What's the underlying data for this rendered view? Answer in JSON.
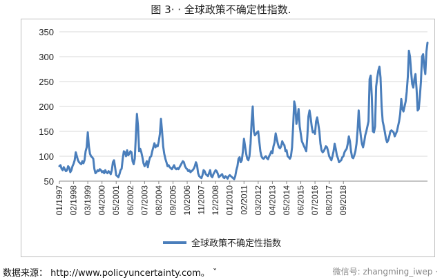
{
  "figure_title": "图 3· · 全球政策不确定性指数.",
  "source_text": "数据来源： http://www.policyuncertainty.com。 ˇ",
  "watermark_text": "微信号: zhangming_iwep ·",
  "colors": {
    "series": "#4a7ebb",
    "grid": "#d9d9d9",
    "axis": "#888888"
  },
  "chart_data": {
    "type": "line",
    "title": "全球政策不确定性指数",
    "xlabel": "",
    "ylabel": "",
    "ylim": [
      50,
      350
    ],
    "yticks": [
      50,
      100,
      150,
      200,
      250,
      300,
      350
    ],
    "grid": true,
    "legend_position": "bottom",
    "x_tick_labels": [
      "01/1997",
      "02/1998",
      "03/1999",
      "04/2000",
      "05/2001",
      "06/2002",
      "07/2003",
      "08/2004",
      "09/2005",
      "10/2006",
      "11/2007",
      "12/2008",
      "01/2010",
      "02/2011",
      "03/2012",
      "04/2013",
      "05/2014",
      "06/2015",
      "07/2016",
      "08/2017",
      "09/2018"
    ],
    "x_start": "01/1997",
    "x_end": "12/2019",
    "series": [
      {
        "name": "全球政策不确定性指数",
        "values": [
          80,
          82,
          75,
          72,
          78,
          74,
          70,
          72,
          80,
          77,
          68,
          72,
          80,
          85,
          92,
          108,
          100,
          92,
          88,
          86,
          84,
          90,
          86,
          92,
          110,
          118,
          148,
          120,
          105,
          100,
          98,
          95,
          75,
          66,
          68,
          72,
          70,
          74,
          72,
          68,
          70,
          66,
          72,
          68,
          66,
          70,
          68,
          64,
          72,
          88,
          92,
          78,
          62,
          60,
          58,
          64,
          72,
          75,
          95,
          110,
          108,
          100,
          112,
          102,
          105,
          110,
          108,
          90,
          84,
          95,
          140,
          185,
          160,
          110,
          115,
          108,
          98,
          86,
          80,
          84,
          90,
          78,
          90,
          98,
          100,
          110,
          118,
          126,
          118,
          122,
          120,
          130,
          145,
          175,
          150,
          120,
          105,
          95,
          88,
          80,
          82,
          78,
          76,
          74,
          78,
          82,
          76,
          74,
          76,
          74,
          78,
          82,
          86,
          90,
          88,
          80,
          76,
          74,
          70,
          72,
          68,
          70,
          72,
          75,
          80,
          88,
          82,
          66,
          60,
          58,
          56,
          62,
          72,
          70,
          64,
          62,
          60,
          66,
          72,
          60,
          58,
          64,
          68,
          72,
          70,
          65,
          58,
          60,
          62,
          64,
          58,
          56,
          60,
          58,
          55,
          60,
          62,
          60,
          58,
          56,
          54,
          60,
          72,
          80,
          95,
          98,
          88,
          92,
          110,
          135,
          120,
          105,
          95,
          92,
          100,
          125,
          170,
          200,
          150,
          142,
          145,
          148,
          150,
          130,
          110,
          100,
          96,
          95,
          98,
          100,
          96,
          94,
          100,
          104,
          110,
          106,
          120,
          128,
          146,
          135,
          125,
          118,
          116,
          120,
          130,
          125,
          122,
          110,
          112,
          100,
          98,
          95,
          100,
          118,
          160,
          210,
          200,
          165,
          178,
          195,
          160,
          145,
          130,
          125,
          120,
          115,
          110,
          140,
          180,
          192,
          178,
          160,
          148,
          150,
          145,
          170,
          178,
          165,
          150,
          125,
          112,
          108,
          110,
          115,
          120,
          118,
          110,
          100,
          96,
          92,
          100,
          110,
          125,
          115,
          102,
          96,
          88,
          90,
          92,
          98,
          100,
          108,
          112,
          115,
          125,
          140,
          130,
          110,
          98,
          96,
          102,
          110,
          125,
          152,
          192,
          160,
          140,
          125,
          118,
          128,
          142,
          150,
          160,
          170,
          255,
          262,
          220,
          150,
          148,
          160,
          240,
          258,
          272,
          280,
          258,
          200,
          170,
          160,
          148,
          135,
          128,
          132,
          140,
          150,
          152,
          150,
          148,
          140,
          145,
          150,
          160,
          170,
          185,
          215,
          195,
          190,
          200,
          210,
          230,
          260,
          312,
          300,
          270,
          245,
          238,
          255,
          265,
          235,
          192,
          195,
          220,
          250,
          300,
          305,
          280,
          265,
          310,
          328
        ]
      }
    ]
  }
}
